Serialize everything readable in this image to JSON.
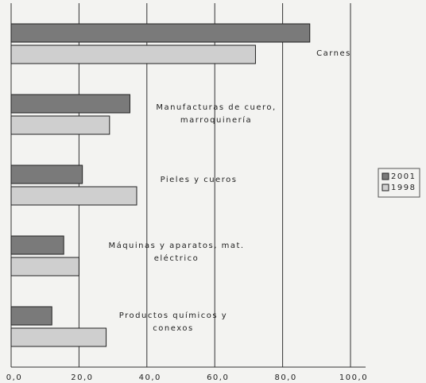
{
  "chart_data": {
    "type": "bar",
    "orientation": "horizontal",
    "categories": [
      "Carnes",
      "Manufacturas de cuero,\nmarroquinería",
      "Pieles y cueros",
      "Máquinas y aparatos, mat.\neléctrico",
      "Productos químicos y\nconexos"
    ],
    "series": [
      {
        "name": "2001",
        "color": "#7a7a7a",
        "values": [
          88,
          35,
          21,
          15.5,
          12
        ]
      },
      {
        "name": "1998",
        "color": "#cfcfcf",
        "values": [
          72,
          29,
          37,
          20,
          28
        ]
      }
    ],
    "xlim": [
      0,
      100
    ],
    "xticks": [
      {
        "value": 0,
        "label": "0,0"
      },
      {
        "value": 20,
        "label": "20,0"
      },
      {
        "value": 40,
        "label": "40,0"
      },
      {
        "value": 60,
        "label": "60,0"
      },
      {
        "value": 80,
        "label": "80,0"
      },
      {
        "value": 100,
        "label": "100,0"
      }
    ],
    "grid": true,
    "legend": "right"
  }
}
